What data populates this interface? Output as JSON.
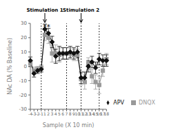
{
  "chart_data": {
    "type": "line",
    "xlabel": "Sample (X 10 min)",
    "ylabel": "NAc DA (% Baseline)",
    "categories": [
      -4,
      -3,
      -2,
      -1,
      1,
      2,
      3,
      4,
      5,
      6,
      7,
      8,
      9,
      10,
      11,
      12,
      13,
      14,
      15,
      16,
      17,
      18
    ],
    "series": [
      {
        "name": "APV",
        "color": "#111111",
        "marker": "diamond",
        "values": [
          4,
          -5,
          -3,
          -2,
          26,
          23,
          17,
          7,
          9,
          9,
          9,
          10,
          9,
          10,
          -8,
          -8,
          0,
          3,
          -1,
          5,
          4,
          4
        ],
        "errors": [
          2.5,
          2.5,
          2,
          2,
          3.5,
          3.5,
          4,
          5,
          5,
          4,
          4,
          4,
          4,
          4,
          4,
          4,
          4,
          4,
          4,
          4,
          4,
          4
        ]
      },
      {
        "name": "DNQX",
        "color": "#999999",
        "marker": "square",
        "values": [
          2,
          -3,
          -2,
          -1,
          22,
          20,
          9,
          9,
          8,
          9,
          9,
          9,
          8,
          8,
          -9,
          -11,
          2,
          -7,
          -11,
          -13,
          -3,
          5
        ],
        "errors": [
          2.5,
          2.5,
          2,
          2,
          4,
          4,
          6,
          6,
          5,
          4,
          4,
          4,
          4,
          4,
          4,
          5,
          4,
          5,
          5,
          6,
          4,
          4
        ]
      }
    ],
    "ylim": [
      -30,
      30
    ],
    "yticks": [
      -30,
      -20,
      -10,
      0,
      10,
      20,
      30
    ],
    "vlines": [
      -1,
      7,
      11,
      16
    ],
    "annotations": [
      {
        "text": "Stimulation 1",
        "x": 1,
        "arrow": true
      },
      {
        "text": "Stimulation 2",
        "x": 11,
        "arrow": true
      },
      {
        "text": "*",
        "x": 1
      },
      {
        "text": "*",
        "x": 2
      }
    ],
    "legend": "lower right",
    "grid": false
  }
}
